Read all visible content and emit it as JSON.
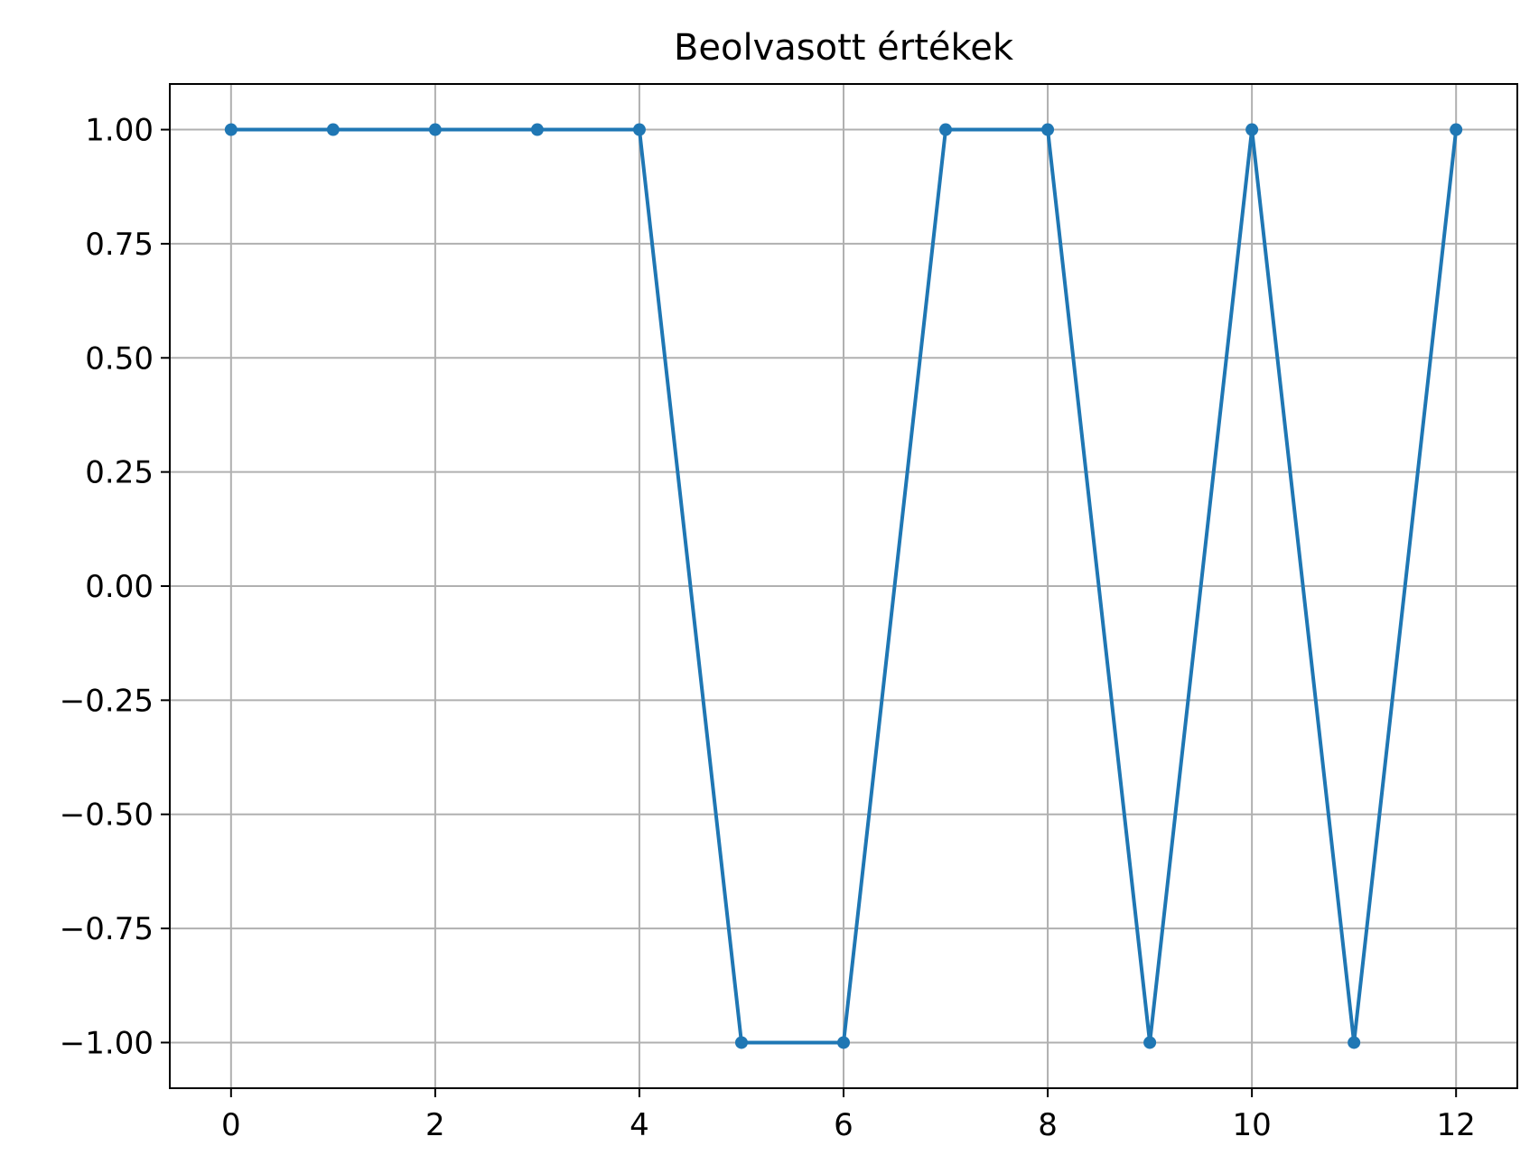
{
  "chart_data": {
    "type": "line",
    "title": "Beolvasott értékek",
    "xlabel": "",
    "ylabel": "",
    "x": [
      0,
      1,
      2,
      3,
      4,
      5,
      6,
      7,
      8,
      9,
      10,
      11,
      12
    ],
    "series": [
      {
        "values": [
          1,
          1,
          1,
          1,
          1,
          -1,
          -1,
          1,
          1,
          -1,
          1,
          -1,
          1
        ]
      }
    ],
    "xlim": [
      -0.6,
      12.6
    ],
    "ylim": [
      -1.1,
      1.1
    ],
    "xticks": [
      0,
      2,
      4,
      6,
      8,
      10,
      12
    ],
    "xtick_labels": [
      "0",
      "2",
      "4",
      "6",
      "8",
      "10",
      "12"
    ],
    "yticks": [
      1.0,
      0.75,
      0.5,
      0.25,
      0.0,
      -0.25,
      -0.5,
      -0.75,
      -1.0
    ],
    "ytick_labels": [
      "1.00",
      "0.75",
      "0.50",
      "0.25",
      "0.00",
      "−0.25",
      "−0.50",
      "−0.75",
      "−1.00"
    ],
    "grid": true,
    "legend": "none",
    "colors": {
      "line": "#1f77b4",
      "grid": "#b0b0b0",
      "axes": "#000000"
    }
  }
}
